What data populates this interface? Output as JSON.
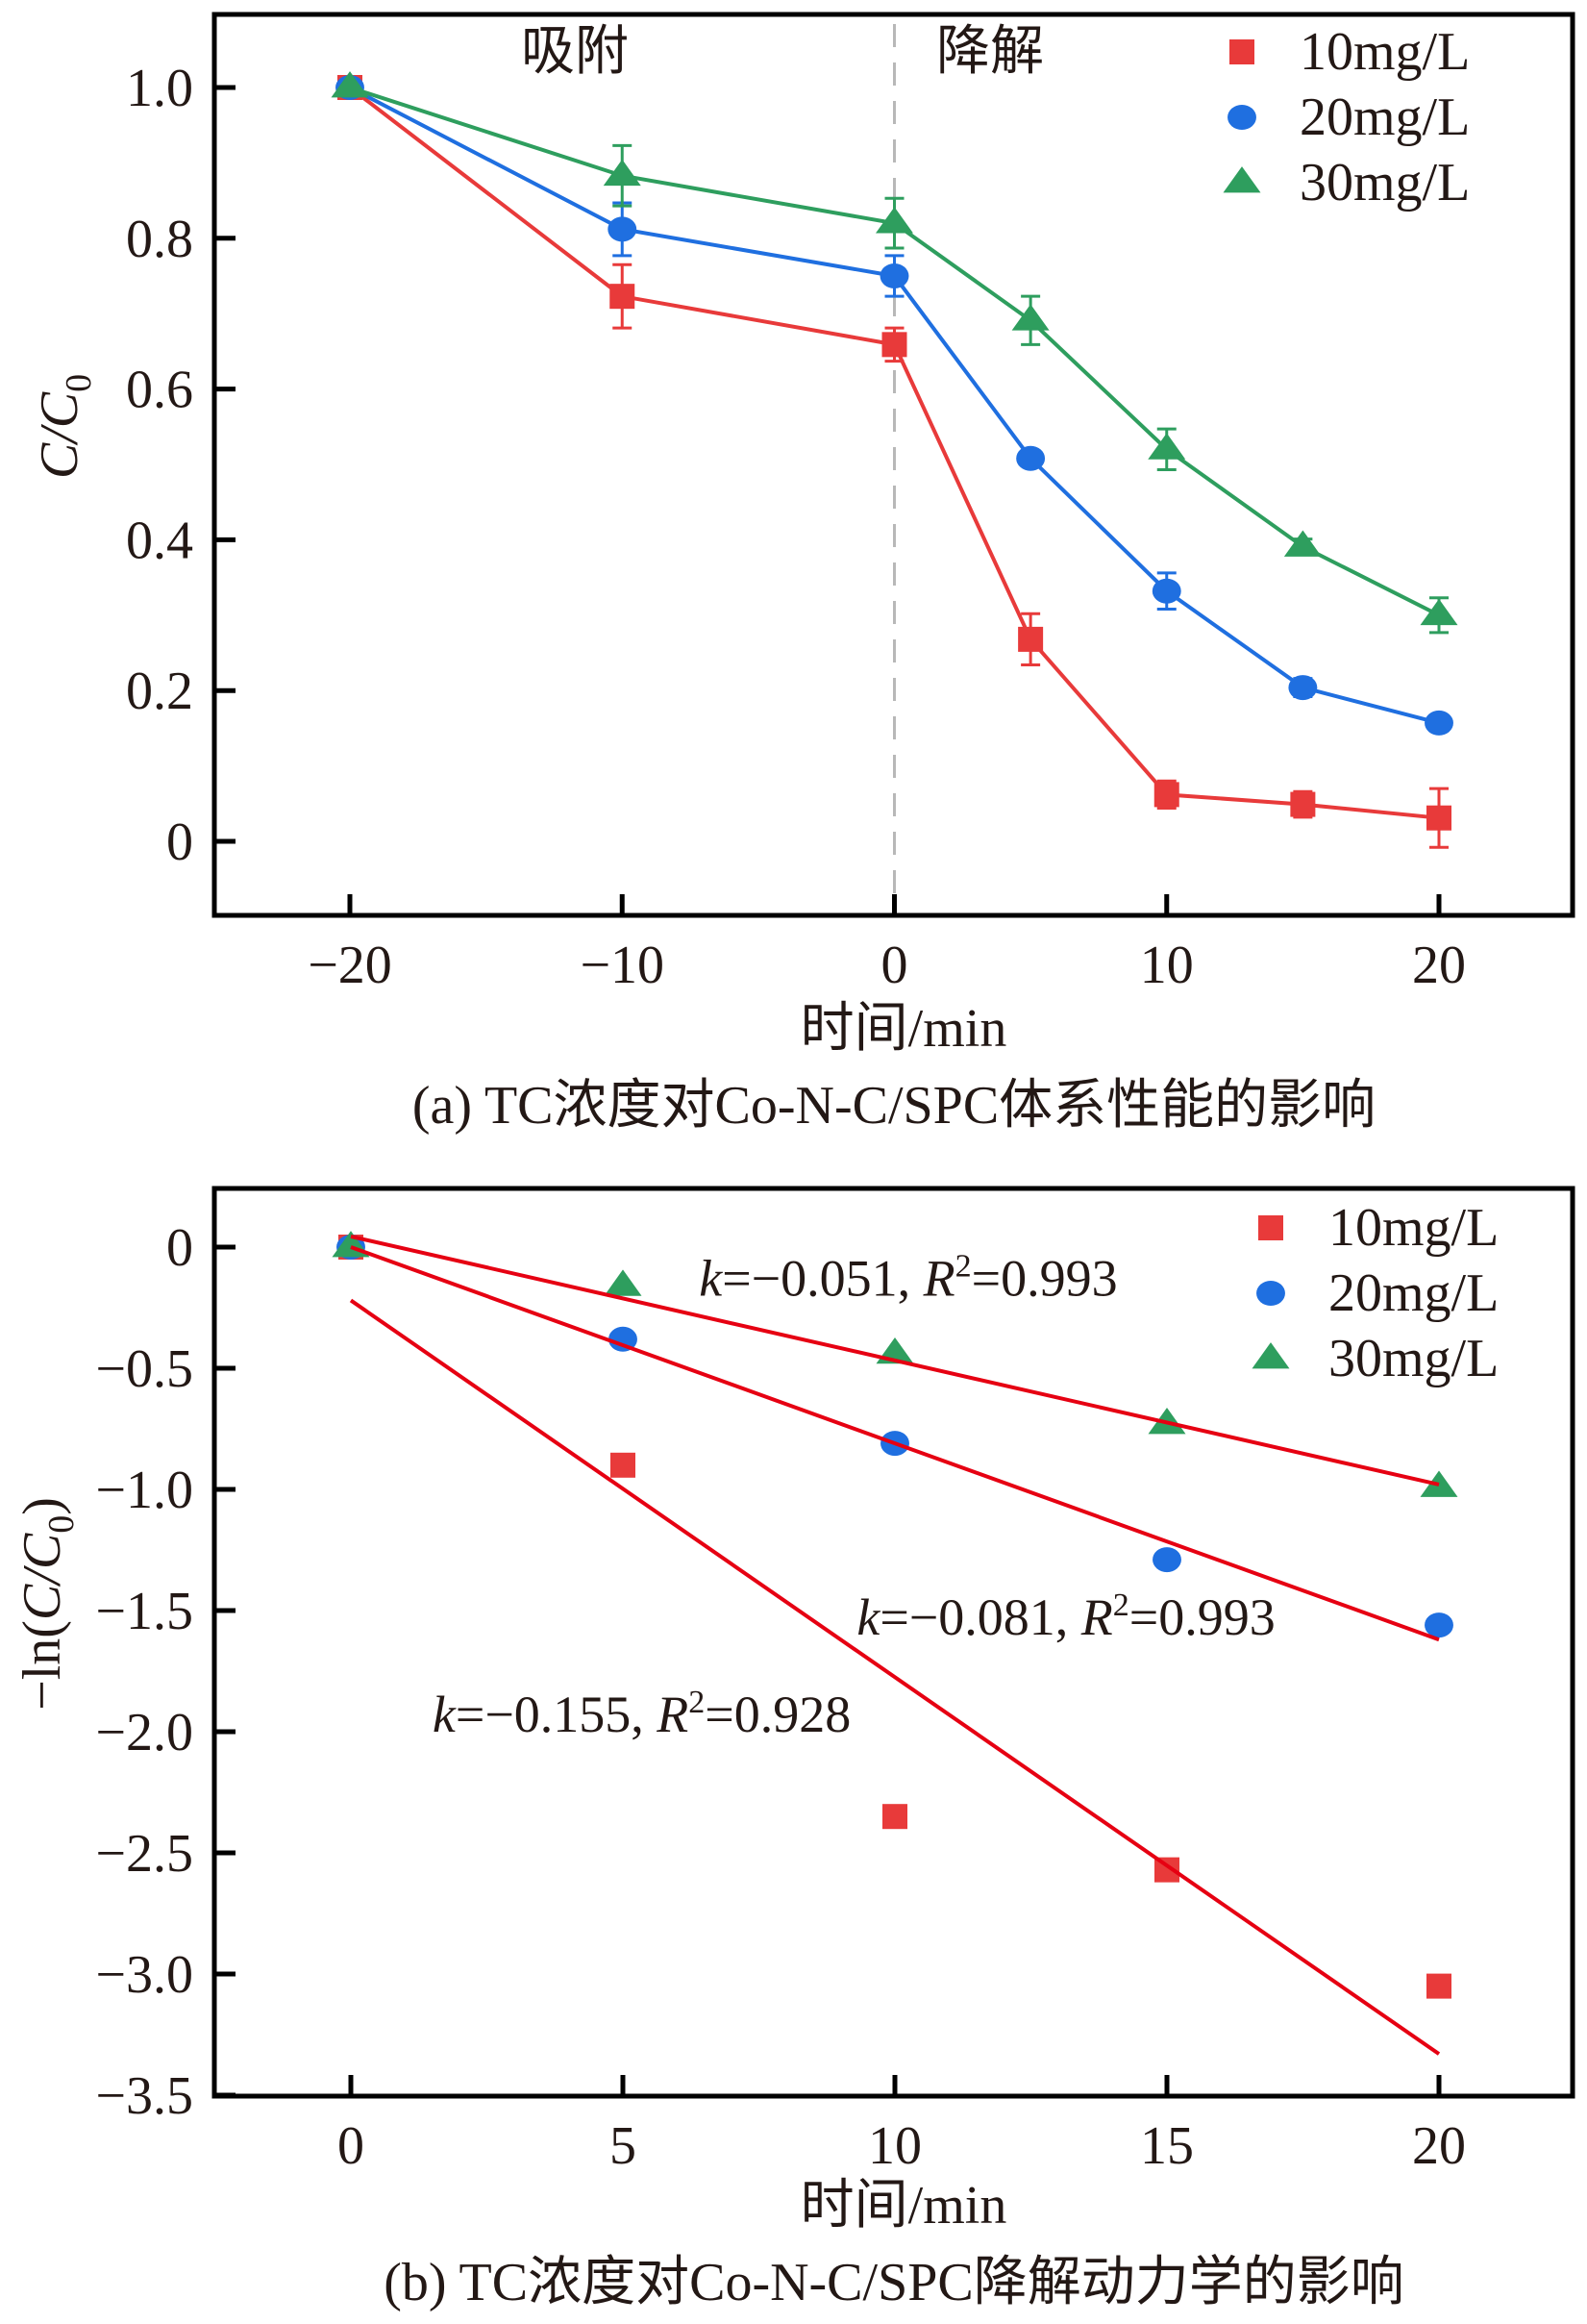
{
  "colors": {
    "c10": "#e83a3a",
    "c20": "#1f6fe0",
    "c30": "#2e9e5e",
    "fit": "#e60012",
    "divider": "#b8b8b8",
    "axis": "#000000"
  },
  "chart_data": [
    {
      "id": "a",
      "type": "line",
      "title": "",
      "caption": "(a) TC浓度对Co-N-C/SPC体系性能的影响",
      "xlabel": "时间/min",
      "ylabel": "C/C0",
      "ylabel_main": "C/C",
      "ylabel_sub": "0",
      "xlim": [
        -25,
        25
      ],
      "ylim": [
        -0.1,
        1.1
      ],
      "xticks": [
        -20,
        -10,
        0,
        10,
        20
      ],
      "xtick_labels": [
        "−20",
        "−10",
        "0",
        "10",
        "20"
      ],
      "yticks": [
        0,
        0.2,
        0.4,
        0.6,
        0.8,
        1.0
      ],
      "ytick_labels": [
        "0",
        "0.2",
        "0.4",
        "0.6",
        "0.8",
        "1.0"
      ],
      "divider_x": 0,
      "phase_labels": [
        "吸附",
        "降解"
      ],
      "legend_position": "top-right",
      "grid": false,
      "x": [
        -20,
        -10,
        0,
        5,
        10,
        15,
        20
      ],
      "series": [
        {
          "name": "10mg/L",
          "marker": "square",
          "color_key": "c10",
          "values": [
            1.0,
            0.723,
            0.659,
            0.268,
            0.062,
            0.049,
            0.031
          ],
          "errors": [
            0.0,
            0.042,
            0.022,
            0.034,
            0.018,
            0.017,
            0.039
          ]
        },
        {
          "name": "20mg/L",
          "marker": "circle",
          "color_key": "c20",
          "values": [
            1.0,
            0.812,
            0.75,
            0.508,
            0.332,
            0.204,
            0.157
          ],
          "errors": [
            0.0,
            0.035,
            0.027,
            0.01,
            0.024,
            0.012,
            0.0
          ]
        },
        {
          "name": "30mg/L",
          "marker": "triangle",
          "color_key": "c30",
          "values": [
            1.0,
            0.883,
            0.82,
            0.691,
            0.52,
            0.391,
            0.3
          ],
          "errors": [
            0.0,
            0.04,
            0.033,
            0.032,
            0.027,
            0.01,
            0.023
          ]
        }
      ]
    },
    {
      "id": "b",
      "type": "scatter",
      "title": "",
      "caption": "(b) TC浓度对Co-N-C/SPC降解动力学的影响",
      "xlabel": "时间/min",
      "ylabel": "−ln(C/C0)",
      "ylabel_parts": [
        "−ln(",
        "C/C",
        "0",
        ")"
      ],
      "xlim": [
        -2.5,
        22.5
      ],
      "ylim": [
        -3.5,
        0.24
      ],
      "xticks": [
        0,
        5,
        10,
        15,
        20
      ],
      "xtick_labels": [
        "0",
        "5",
        "10",
        "15",
        "20"
      ],
      "yticks": [
        0,
        -0.5,
        -1.0,
        -1.5,
        -2.0,
        -2.5,
        -3.0,
        -3.5
      ],
      "ytick_labels": [
        "0",
        "−0.5",
        "−1.0",
        "−1.5",
        "−2.0",
        "−2.5",
        "−3.0",
        "−3.5"
      ],
      "legend_position": "top-right",
      "grid": false,
      "x": [
        0,
        5,
        10,
        15,
        20
      ],
      "series": [
        {
          "name": "10mg/L",
          "marker": "square",
          "color_key": "c10",
          "values": [
            0,
            -0.9,
            -2.35,
            -2.57,
            -3.05
          ],
          "fit": {
            "x0": 0,
            "y0": -0.22,
            "x1": 20,
            "y1": -3.33
          },
          "annotation": {
            "k": "−0.155",
            "r2": "0.928",
            "at_x": 1.5,
            "at_y": -2.0
          }
        },
        {
          "name": "20mg/L",
          "marker": "circle",
          "color_key": "c20",
          "values": [
            0,
            -0.38,
            -0.81,
            -1.29,
            -1.56
          ],
          "fit": {
            "x0": 0,
            "y0": 0.0,
            "x1": 20,
            "y1": -1.62
          },
          "annotation": {
            "k": "−0.081",
            "r2": "0.993",
            "at_x": 9.3,
            "at_y": -1.6
          }
        },
        {
          "name": "30mg/L",
          "marker": "triangle",
          "color_key": "c30",
          "values": [
            0,
            -0.16,
            -0.44,
            -0.73,
            -0.99
          ],
          "fit": {
            "x0": 0,
            "y0": 0.044,
            "x1": 20,
            "y1": -0.98
          },
          "annotation": {
            "k": "−0.051",
            "r2": "0.993",
            "at_x": 6.4,
            "at_y": -0.2
          }
        }
      ]
    }
  ],
  "labels": {
    "k_symbol": "k",
    "r_symbol": "R",
    "r_sup": "2",
    "equals": "=",
    "sep": ", "
  }
}
